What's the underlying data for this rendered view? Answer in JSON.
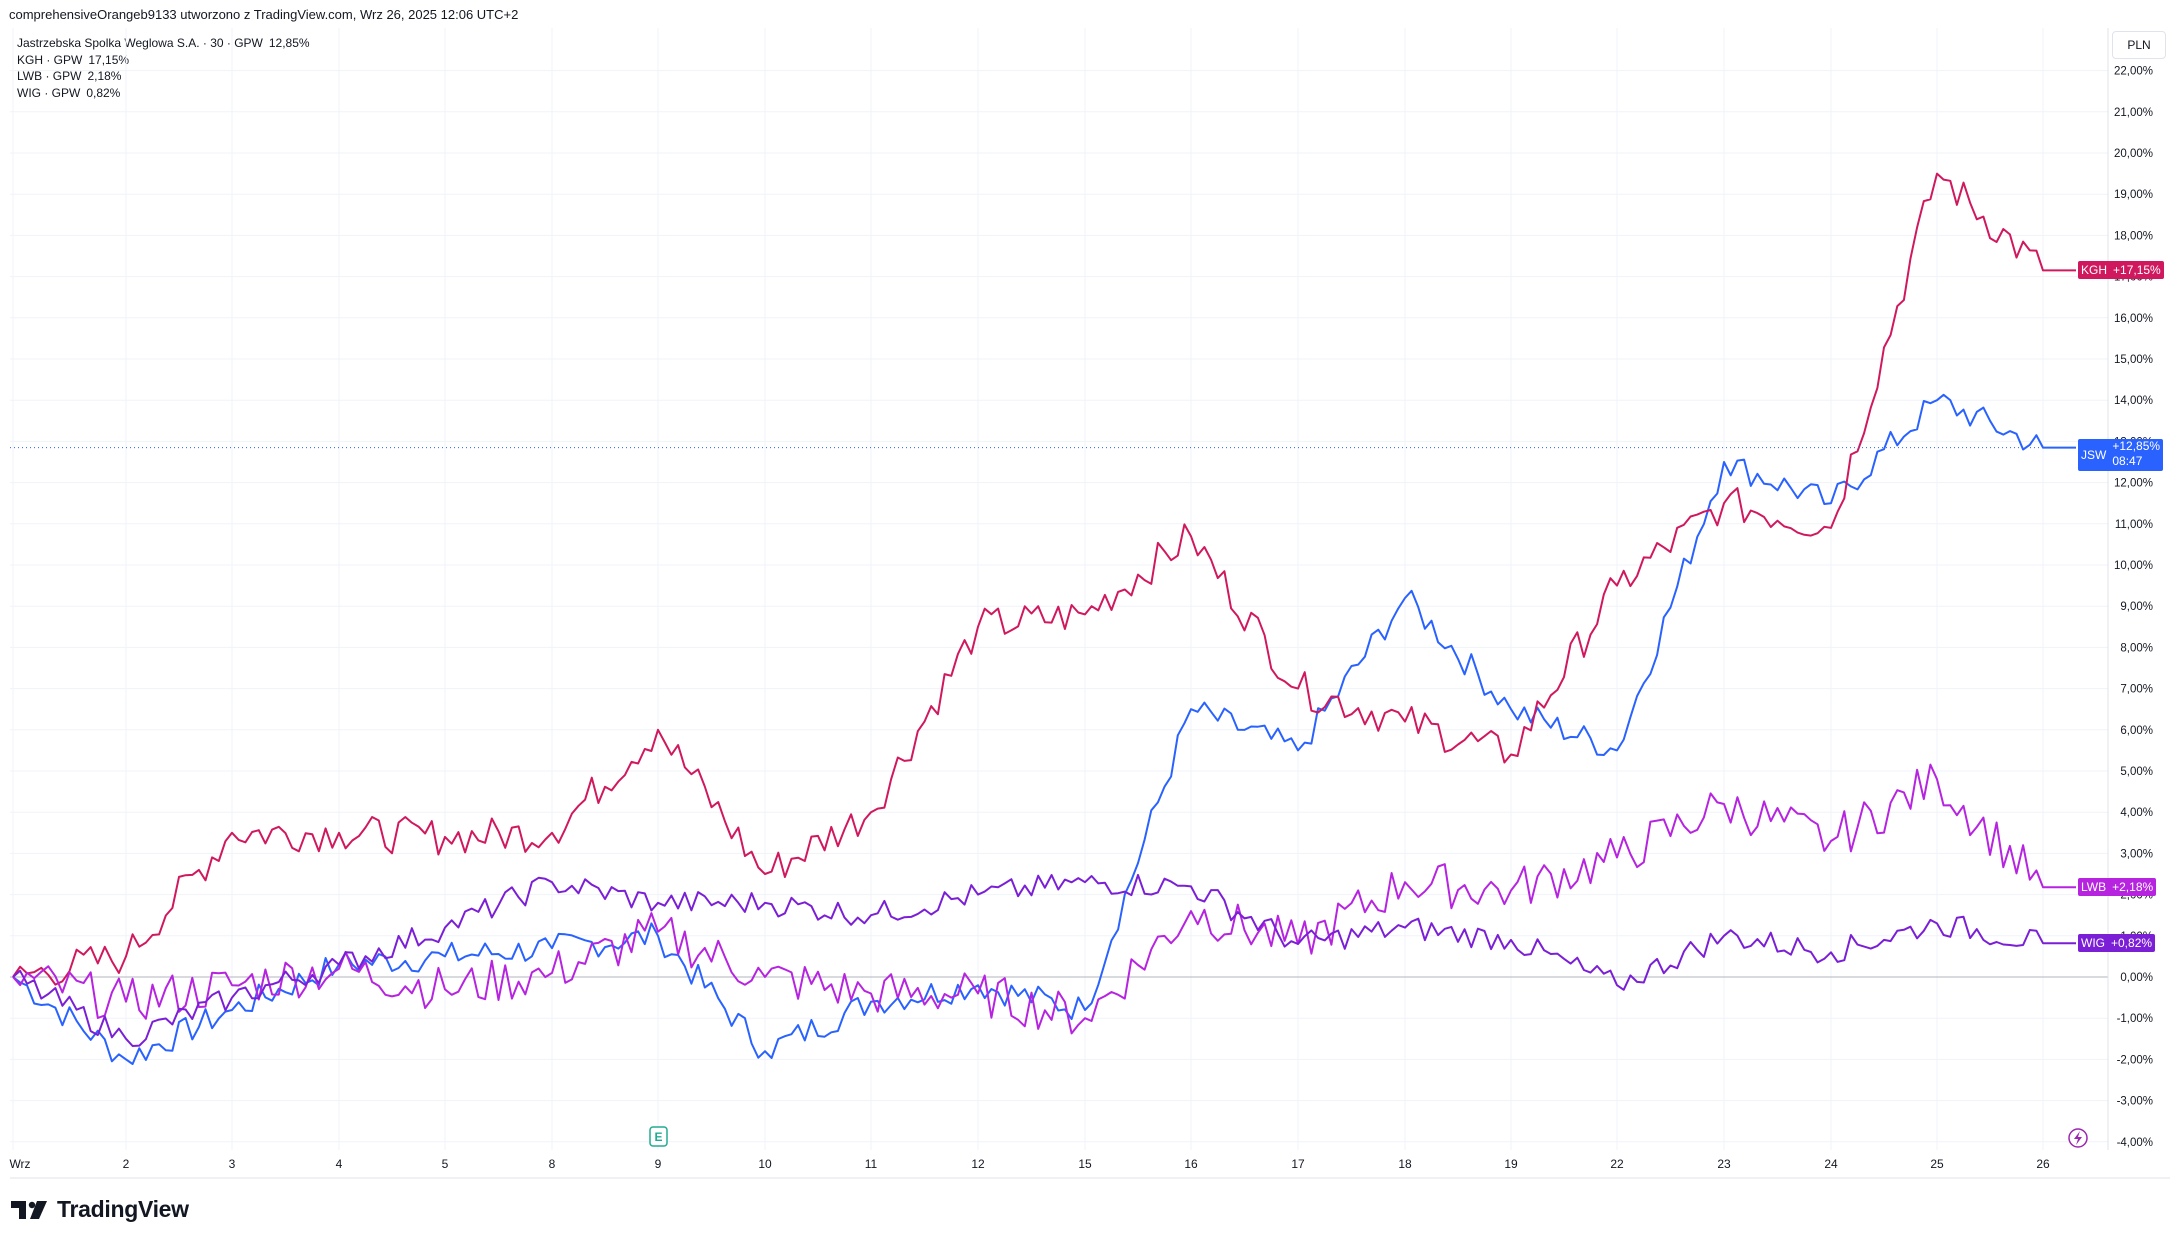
{
  "header": {
    "text": "comprehensiveOrangeb9133 utworzono z TradingView.com, Wrz 26, 2025 12:06 UTC+2"
  },
  "legend": [
    {
      "label": "Jastrzebska Spolka Weglowa S.A. · 30 · GPW",
      "value": "12,85%",
      "color": "#2962ff"
    },
    {
      "label": "KGH · GPW",
      "value": "17,15%",
      "color": "#e91e63"
    },
    {
      "label": "LWB · GPW",
      "value": "2,18%",
      "color": "#e040fb"
    },
    {
      "label": "WIG · GPW",
      "value": "0,82%",
      "color": "#9c27b0"
    }
  ],
  "axis": {
    "currency": "PLN",
    "y_ticks": [
      "22,00%",
      "21,00%",
      "20,00%",
      "19,00%",
      "18,00%",
      "17,00%",
      "16,00%",
      "15,00%",
      "14,00%",
      "13,00%",
      "12,00%",
      "11,00%",
      "10,00%",
      "9,00%",
      "8,00%",
      "7,00%",
      "6,00%",
      "5,00%",
      "4,00%",
      "3,00%",
      "2,00%",
      "1,00%",
      "0,00%",
      "-1,00%",
      "-2,00%",
      "-3,00%",
      "-4,00%"
    ],
    "x_ticks": [
      "Wrz",
      "2",
      "3",
      "4",
      "5",
      "8",
      "9",
      "10",
      "11",
      "12",
      "15",
      "16",
      "17",
      "18",
      "19",
      "22",
      "23",
      "24",
      "25",
      "26"
    ]
  },
  "markers": {
    "kgh": {
      "name": "KGH",
      "value": "+17,15%",
      "color": "#d0185e"
    },
    "jsw": {
      "name": "JSW",
      "value": "+12,85%",
      "time": "08:47",
      "color": "#2962ff"
    },
    "lwb": {
      "name": "LWB",
      "value": "+2,18%",
      "color": "#b624e0"
    },
    "wig": {
      "name": "WIG",
      "value": "+0,82%",
      "color": "#7b1fd6"
    }
  },
  "brand": {
    "name": "TradingView"
  },
  "earnings_badge": "E",
  "chart_data": {
    "type": "line",
    "title": "",
    "xlabel": "",
    "ylabel": "",
    "ylim": [
      -4.3,
      22.5
    ],
    "y_unit": "%",
    "grid": true,
    "legend_position": "top-left",
    "x": [
      "Wrz 1",
      "2",
      "3",
      "4",
      "5",
      "8",
      "9",
      "10",
      "11",
      "12",
      "15",
      "16",
      "17",
      "18",
      "19",
      "22",
      "23",
      "24",
      "25",
      "26"
    ],
    "series": [
      {
        "name": "Jastrzebska Spolka Weglowa S.A. · 30 · GPW",
        "color": "#2962ff",
        "values": [
          0.0,
          -2.0,
          -0.8,
          0.3,
          0.5,
          0.7,
          1.0,
          -1.8,
          -0.6,
          -0.2,
          -0.8,
          6.5,
          5.5,
          9.2,
          6.5,
          5.5,
          12.5,
          11.5,
          14.0,
          12.85
        ]
      },
      {
        "name": "KGH · GPW",
        "color": "#d0185e",
        "values": [
          0.0,
          0.5,
          3.5,
          3.5,
          3.4,
          3.5,
          6.0,
          2.5,
          4.0,
          8.5,
          8.8,
          10.7,
          7.0,
          6.2,
          5.4,
          9.5,
          11.5,
          10.9,
          19.5,
          17.15
        ]
      },
      {
        "name": "LWB · GPW",
        "color": "#b624e0",
        "values": [
          0.0,
          -0.6,
          -0.2,
          0.2,
          -0.3,
          0.1,
          1.1,
          0.0,
          -0.4,
          -0.4,
          -1.0,
          1.6,
          0.8,
          2.3,
          2.1,
          2.9,
          4.2,
          3.3,
          4.8,
          2.18
        ]
      },
      {
        "name": "WIG · GPW",
        "color": "#7b1fd6",
        "values": [
          0.0,
          -1.5,
          -0.5,
          0.3,
          1.2,
          2.3,
          1.8,
          1.8,
          1.5,
          2.0,
          2.3,
          2.2,
          0.8,
          1.2,
          0.9,
          -0.2,
          1.0,
          0.6,
          1.3,
          0.82
        ]
      }
    ]
  }
}
